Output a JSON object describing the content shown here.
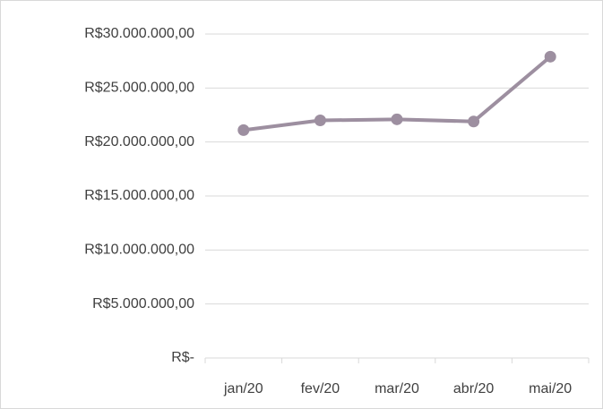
{
  "chart_data": {
    "type": "line",
    "categories": [
      "jan/20",
      "fev/20",
      "mar/20",
      "abr/20",
      "mai/20"
    ],
    "series": [
      {
        "color": "#9d8fa0",
        "values": [
          21100000,
          22000000,
          22100000,
          21900000,
          27900000
        ]
      }
    ],
    "ylim": [
      0,
      30000000
    ],
    "yticks": [
      {
        "value": 0,
        "label": "R$-"
      },
      {
        "value": 5000000,
        "label": "R$5.000.000,00"
      },
      {
        "value": 10000000,
        "label": "R$10.000.000,00"
      },
      {
        "value": 15000000,
        "label": "R$15.000.000,00"
      },
      {
        "value": 20000000,
        "label": "R$20.000.000,00"
      },
      {
        "value": 25000000,
        "label": "R$25.000.000,00"
      },
      {
        "value": 30000000,
        "label": "R$30.000.000,00"
      }
    ],
    "grid": true
  }
}
